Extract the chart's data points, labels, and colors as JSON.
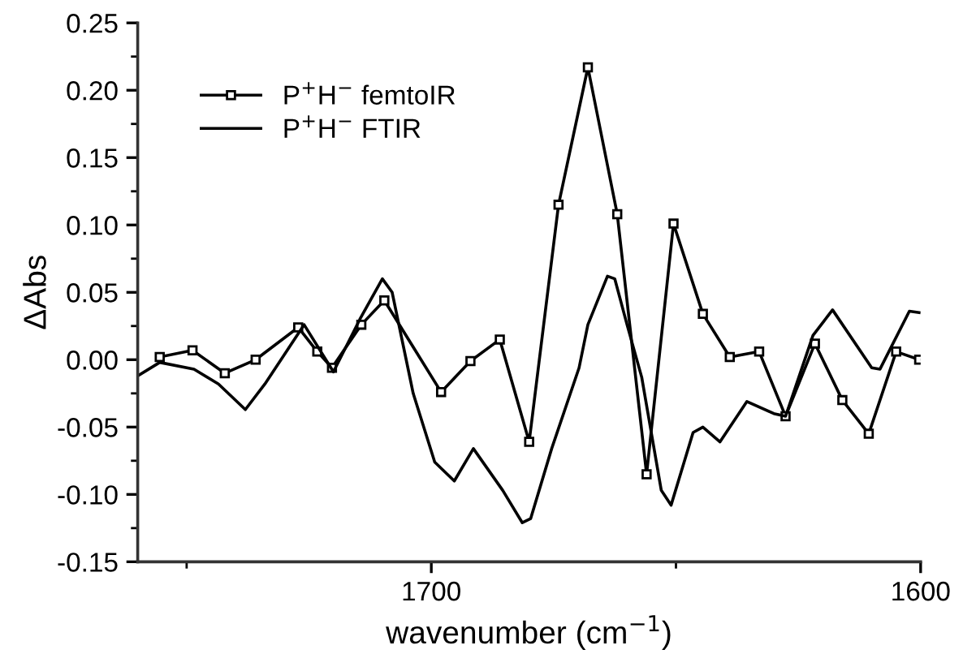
{
  "chart_data": {
    "type": "line",
    "xlabel": "wavenumber (cm$^{−1}$)",
    "ylabel": "ΔAbs",
    "xlim": [
      1760,
      1600
    ],
    "xticks": [
      {
        "value": 1750,
        "label": null
      },
      1700,
      {
        "value": 1650,
        "label": null
      },
      1600
    ],
    "ylim": [
      -0.15,
      0.25
    ],
    "yticks": [
      {
        "value": -0.15,
        "label": "-0.15"
      },
      {
        "value": -0.125,
        "label": null
      },
      {
        "value": -0.1,
        "label": "-0.10"
      },
      {
        "value": -0.075,
        "label": null
      },
      {
        "value": -0.05,
        "label": "-0.05"
      },
      {
        "value": -0.025,
        "label": null
      },
      {
        "value": 0,
        "label": "0.00"
      },
      {
        "value": 0.025,
        "label": null
      },
      {
        "value": 0.05,
        "label": "0.05"
      },
      {
        "value": 0.075,
        "label": null
      },
      {
        "value": 0.1,
        "label": "0.10"
      },
      {
        "value": 0.125,
        "label": null
      },
      {
        "value": 0.15,
        "label": "0.15"
      },
      {
        "value": 0.175,
        "label": null
      },
      {
        "value": 0.2,
        "label": "0.20"
      },
      {
        "value": 0.225,
        "label": null
      },
      {
        "value": 0.25,
        "label": "0.25"
      }
    ],
    "grid": false,
    "legend": "top left",
    "series": [
      {
        "name": "P$^{+}$H$^{−}$ femtoIR",
        "color": "#000000",
        "marker": "square",
        "line_style": "solid",
        "x": [
          1755.5,
          1748.8,
          1742.2,
          1735.9,
          1727.2,
          1723.3,
          1720.3,
          1714.3,
          1709.6,
          1698,
          1692,
          1686,
          1680,
          1674,
          1668,
          1662,
          1656,
          1650.5,
          1644.5,
          1639,
          1633,
          1627.6,
          1621.6,
          1616,
          1610.6,
          1605,
          1600.3
        ],
        "values": [
          0.002,
          0.007,
          -0.01,
          0.0,
          0.024,
          0.006,
          -0.006,
          0.026,
          0.044,
          -0.024,
          -0.001,
          0.015,
          -0.061,
          0.115,
          0.217,
          0.108,
          -0.085,
          0.101,
          0.034,
          0.002,
          0.006,
          -0.042,
          0.012,
          -0.03,
          -0.055,
          0.006,
          0.0
        ]
      },
      {
        "name": "P$^{+}$H$^{−}$ FTIR",
        "color": "#000000",
        "marker": "none",
        "line_style": "solid",
        "x": [
          1760,
          1755.5,
          1748.5,
          1743.5,
          1738,
          1734,
          1726,
          1720,
          1714.6,
          1710,
          1708,
          1703.7,
          1699.3,
          1695.3,
          1691.4,
          1685.4,
          1681.4,
          1679.7,
          1675.4,
          1669.8,
          1668,
          1664,
          1662.5,
          1660,
          1657,
          1653,
          1651,
          1646.5,
          1644.5,
          1641,
          1635.5,
          1630,
          1627.6,
          1622,
          1618,
          1610,
          1608.3,
          1602.3,
          1600.3
        ],
        "values": [
          -0.012,
          -0.002,
          -0.007,
          -0.018,
          -0.037,
          -0.018,
          0.026,
          -0.009,
          0.03,
          0.06,
          0.05,
          -0.025,
          -0.076,
          -0.09,
          -0.066,
          -0.097,
          -0.121,
          -0.118,
          -0.066,
          -0.006,
          0.026,
          0.062,
          0.06,
          0.026,
          -0.013,
          -0.097,
          -0.108,
          -0.054,
          -0.05,
          -0.061,
          -0.031,
          -0.04,
          -0.042,
          0.018,
          0.037,
          -0.006,
          -0.007,
          0.036,
          0.035
        ]
      }
    ]
  }
}
